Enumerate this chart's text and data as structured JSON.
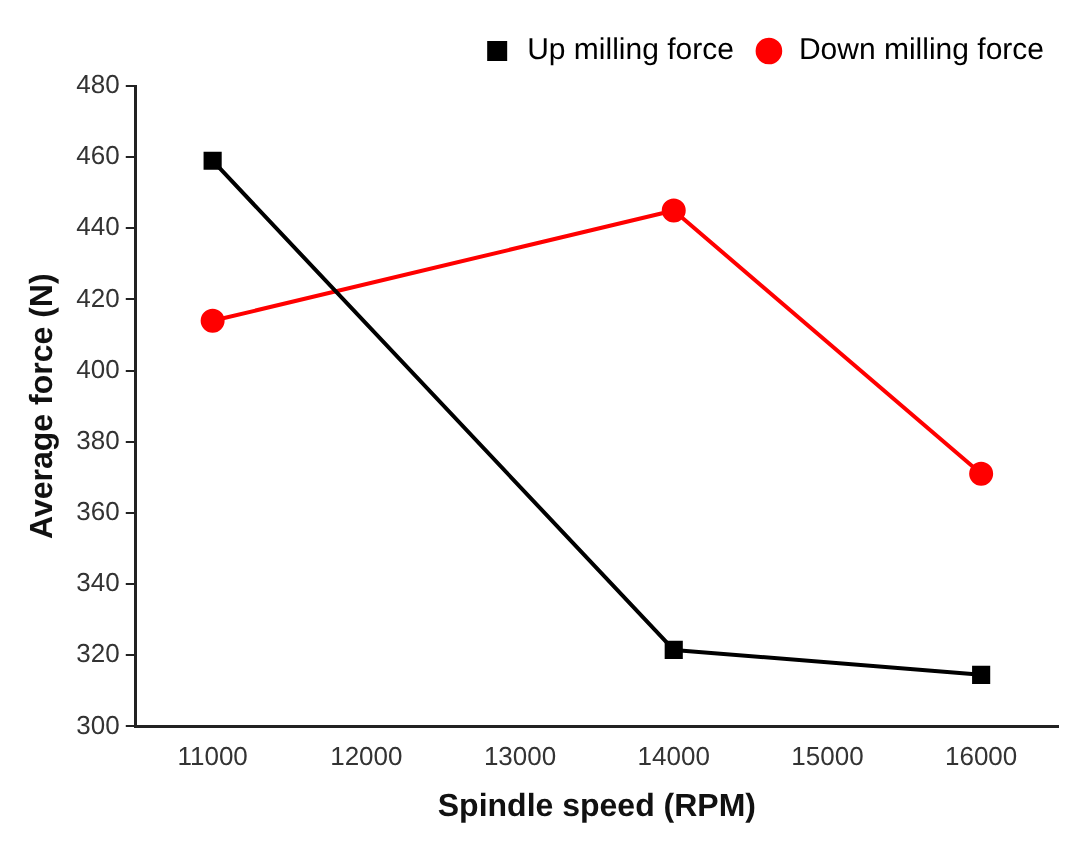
{
  "chart_data": {
    "type": "line",
    "xlabel": "Spindle speed (RPM)",
    "ylabel": "Average force (N)",
    "x": [
      11000,
      14000,
      16000
    ],
    "xlim": [
      10500,
      16500
    ],
    "xticks": [
      11000,
      12000,
      13000,
      14000,
      15000,
      16000
    ],
    "ylim": [
      300,
      480
    ],
    "yticks": [
      300,
      320,
      340,
      360,
      380,
      400,
      420,
      440,
      460,
      480
    ],
    "grid": false,
    "legend": "top right",
    "line_style": "solid",
    "series": [
      {
        "name": "Up milling force",
        "color": "#000000",
        "marker": "square",
        "values": [
          459,
          321.5,
          314.5
        ]
      },
      {
        "name": "Down milling force",
        "color": "#ff0000",
        "marker": "circle",
        "values": [
          414,
          445,
          371
        ]
      }
    ]
  }
}
